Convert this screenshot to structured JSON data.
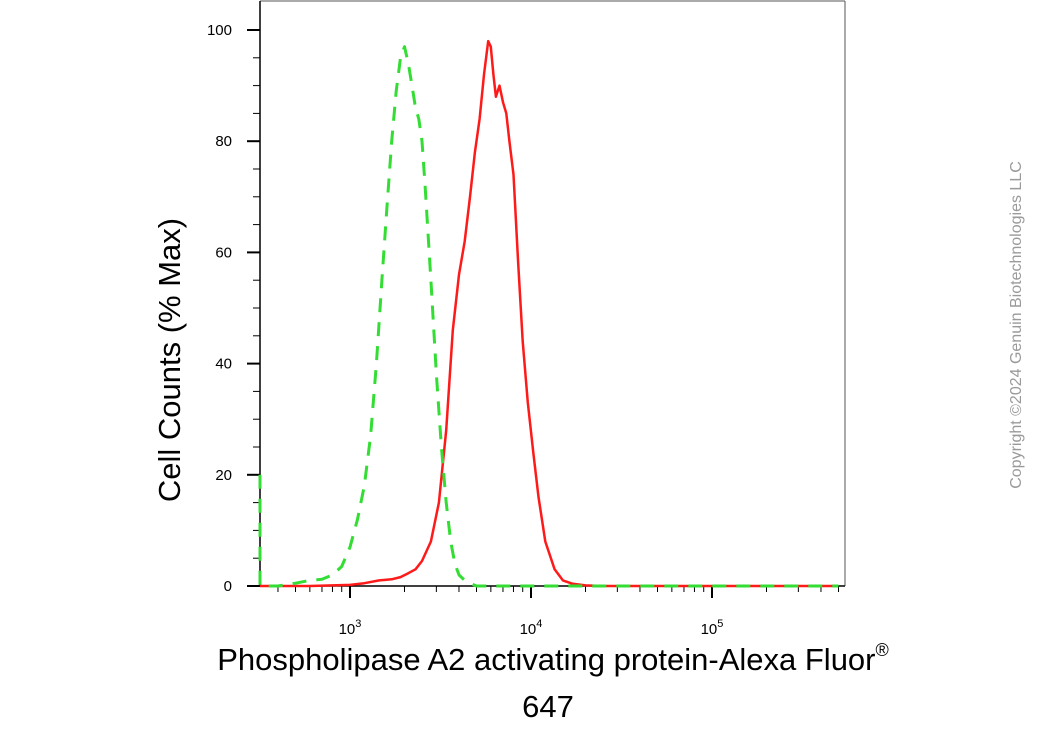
{
  "chart_data": {
    "type": "line",
    "subtype": "flow-cytometry-histogram",
    "xscale": "log",
    "xlim": [
      250,
      500000
    ],
    "ylim": [
      0,
      100
    ],
    "y_ticks": [
      {
        "value": 0,
        "label": "0"
      },
      {
        "value": 20,
        "label": "20"
      },
      {
        "value": 40,
        "label": "40"
      },
      {
        "value": 60,
        "label": "60"
      },
      {
        "value": 80,
        "label": "80"
      },
      {
        "value": 100,
        "label": "100"
      }
    ],
    "x_ticks": [
      {
        "value": 1000,
        "base": "10",
        "exp": "3"
      },
      {
        "value": 10000,
        "base": "10",
        "exp": "4"
      },
      {
        "value": 100000,
        "base": "10",
        "exp": "5"
      }
    ],
    "ylabel": "Cell Counts (% Max)",
    "xlabel_line1": "Phospholipase A2 activating protein-Alexa Fluor",
    "xlabel_sup": "®",
    "xlabel_line2": "647",
    "series": [
      {
        "color": "#ff1a1a",
        "style": "solid",
        "x": [
          250,
          600,
          1000,
          1200,
          1450,
          1700,
          1900,
          2100,
          2300,
          2500,
          2800,
          3100,
          3400,
          3700,
          4000,
          4300,
          4600,
          4900,
          5200,
          5500,
          5800,
          6000,
          6200,
          6400,
          6700,
          7000,
          7300,
          7600,
          8000,
          8500,
          9000,
          9600,
          10300,
          11000,
          12000,
          13500,
          15000,
          17000,
          20000,
          25000,
          40000,
          100000,
          500000
        ],
        "y": [
          0,
          0,
          0.2,
          0.5,
          1,
          1.2,
          1.6,
          2.3,
          3,
          4.5,
          8,
          15,
          28,
          46,
          56,
          62,
          70,
          78,
          84,
          92,
          98,
          97,
          92,
          88,
          90,
          87,
          85,
          80,
          74,
          58,
          44,
          33,
          24,
          16,
          8,
          3,
          1,
          0.4,
          0.1,
          0,
          0,
          0,
          0
        ]
      },
      {
        "color": "#33dd33",
        "style": "dashed",
        "x": [
          250,
          265,
          280,
          300,
          400,
          500,
          600,
          700,
          800,
          900,
          1000,
          1100,
          1200,
          1300,
          1400,
          1500,
          1600,
          1700,
          1800,
          1900,
          2000,
          2100,
          2200,
          2300,
          2400,
          2500,
          2600,
          2800,
          3000,
          3200,
          3400,
          3600,
          3800,
          4000,
          4300,
          4600,
          5000,
          6000,
          500000
        ],
        "y": [
          20,
          8,
          1,
          0,
          0,
          0.5,
          1,
          1.2,
          2,
          3.5,
          7,
          12,
          18,
          27,
          40,
          55,
          68,
          80,
          89,
          95,
          97,
          94,
          90,
          86,
          84,
          80,
          72,
          55,
          38,
          25,
          15,
          8,
          4,
          2,
          1,
          0.5,
          0,
          0,
          0
        ]
      }
    ]
  },
  "watermark": "Copyright ©2024 Genuin Biotechnologies LLC"
}
